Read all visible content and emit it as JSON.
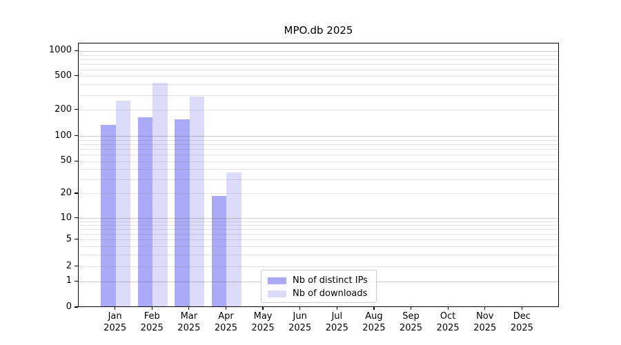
{
  "title": "MPO.db 2025",
  "chart_data": {
    "type": "bar",
    "title": "MPO.db 2025",
    "categories": [
      "Jan",
      "Feb",
      "Mar",
      "Apr",
      "May",
      "Jun",
      "Jul",
      "Aug",
      "Sep",
      "Oct",
      "Nov",
      "Dec"
    ],
    "category_year": "2025",
    "series": [
      {
        "name": "Nb of distinct IPs",
        "color": "#aaaaf8",
        "values": [
          130,
          161,
          152,
          18,
          0,
          0,
          0,
          0,
          0,
          0,
          0,
          0
        ]
      },
      {
        "name": "Nb of downloads",
        "color": "#dcdcfa",
        "values": [
          250,
          410,
          282,
          35,
          0,
          0,
          0,
          0,
          0,
          0,
          0,
          0
        ]
      }
    ],
    "y_axis": {
      "scale": "symlog",
      "ticks": [
        0,
        1,
        2,
        5,
        10,
        20,
        50,
        100,
        200,
        500,
        1000
      ],
      "major_gridlines": [
        1,
        10,
        100,
        1000
      ],
      "minor_gridlines": [
        2,
        3,
        4,
        5,
        6,
        7,
        8,
        9,
        20,
        30,
        40,
        50,
        60,
        70,
        80,
        90,
        200,
        300,
        400,
        500,
        600,
        700,
        800,
        900
      ],
      "range": [
        0,
        1200
      ]
    },
    "legend": {
      "position": "lower center",
      "items": [
        "Nb of distinct IPs",
        "Nb of downloads"
      ]
    },
    "grid": true,
    "colors": {
      "bar_distinct_ips": "#aaaaf8",
      "bar_downloads": "#dcdcfa",
      "major_grid": "#c7c7c7",
      "minor_grid": "#e3e3e3",
      "spine": "#000000",
      "background": "#ffffff"
    }
  }
}
